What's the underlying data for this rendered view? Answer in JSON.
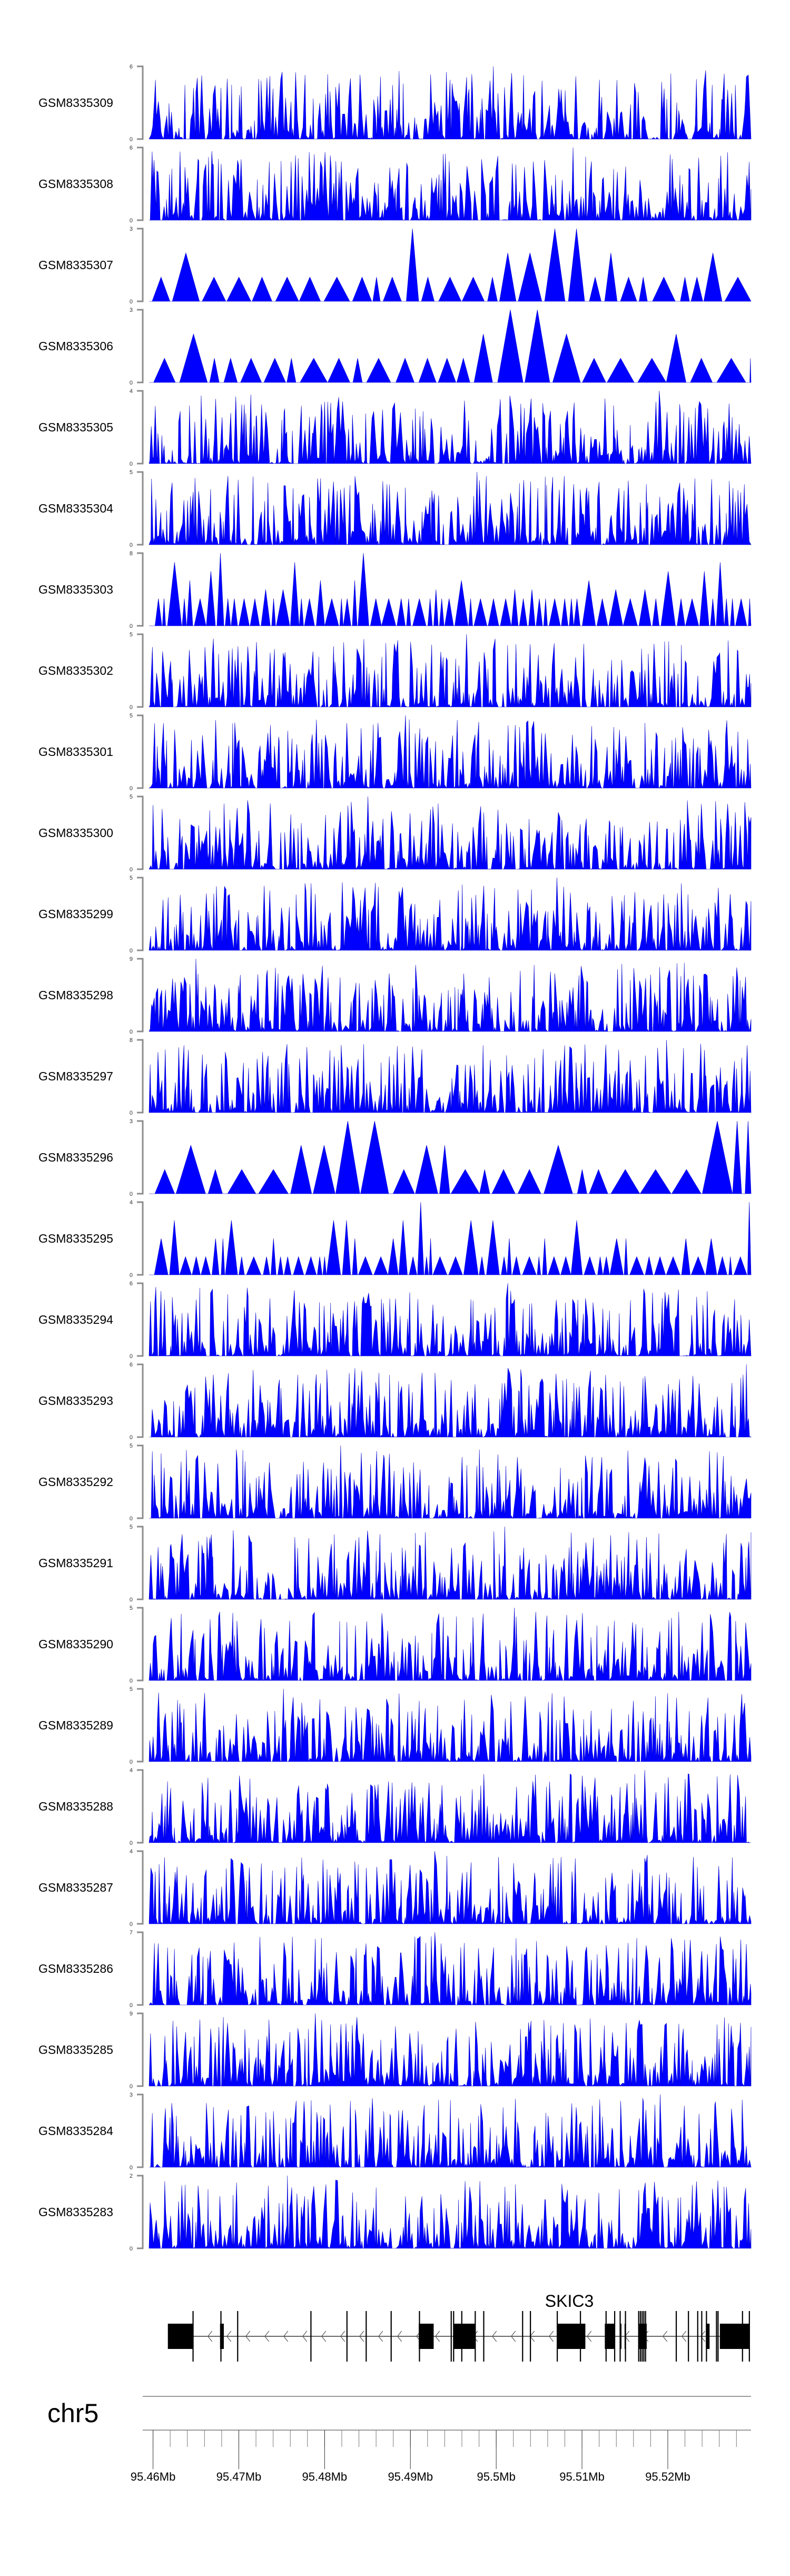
{
  "chart_data": {
    "type": "area",
    "title": "",
    "chromosome": "chr5",
    "xlim_mb": [
      95.4588,
      95.5297
    ],
    "x_ticks": [
      "95.46Mb",
      "95.47Mb",
      "95.48Mb",
      "95.49Mb",
      "95.5Mb",
      "95.51Mb",
      "95.52Mb"
    ],
    "x_tick_values_mb": [
      95.46,
      95.47,
      95.48,
      95.49,
      95.5,
      95.51,
      95.52
    ],
    "minor_tick_step_mb": 0.002,
    "fill_color": "#0000ff",
    "tracks": [
      {
        "name": "GSM8335309",
        "ymax": 6,
        "seed": 309,
        "density": "dense"
      },
      {
        "name": "GSM8335308",
        "ymax": 6,
        "seed": 308,
        "density": "dense"
      },
      {
        "name": "GSM8335307",
        "ymax": 3,
        "seed": 307,
        "density": "sparse"
      },
      {
        "name": "GSM8335306",
        "ymax": 3,
        "seed": 306,
        "density": "sparse"
      },
      {
        "name": "GSM8335305",
        "ymax": 4,
        "seed": 305,
        "density": "dense"
      },
      {
        "name": "GSM8335304",
        "ymax": 5,
        "seed": 304,
        "density": "dense"
      },
      {
        "name": "GSM8335303",
        "ymax": 8,
        "seed": 303,
        "density": "medium"
      },
      {
        "name": "GSM8335302",
        "ymax": 5,
        "seed": 302,
        "density": "dense"
      },
      {
        "name": "GSM8335301",
        "ymax": 5,
        "seed": 301,
        "density": "dense"
      },
      {
        "name": "GSM8335300",
        "ymax": 5,
        "seed": 300,
        "density": "dense"
      },
      {
        "name": "GSM8335299",
        "ymax": 5,
        "seed": 299,
        "density": "dense"
      },
      {
        "name": "GSM8335298",
        "ymax": 9,
        "seed": 298,
        "density": "dense"
      },
      {
        "name": "GSM8335297",
        "ymax": 8,
        "seed": 297,
        "density": "dense"
      },
      {
        "name": "GSM8335296",
        "ymax": 3,
        "seed": 296,
        "density": "sparse"
      },
      {
        "name": "GSM8335295",
        "ymax": 4,
        "seed": 295,
        "density": "medium"
      },
      {
        "name": "GSM8335294",
        "ymax": 6,
        "seed": 294,
        "density": "dense"
      },
      {
        "name": "GSM8335293",
        "ymax": 6,
        "seed": 293,
        "density": "dense"
      },
      {
        "name": "GSM8335292",
        "ymax": 5,
        "seed": 292,
        "density": "dense"
      },
      {
        "name": "GSM8335291",
        "ymax": 5,
        "seed": 291,
        "density": "dense"
      },
      {
        "name": "GSM8335290",
        "ymax": 5,
        "seed": 290,
        "density": "dense"
      },
      {
        "name": "GSM8335289",
        "ymax": 5,
        "seed": 289,
        "density": "dense"
      },
      {
        "name": "GSM8335288",
        "ymax": 4,
        "seed": 288,
        "density": "dense"
      },
      {
        "name": "GSM8335287",
        "ymax": 4,
        "seed": 287,
        "density": "dense"
      },
      {
        "name": "GSM8335286",
        "ymax": 7,
        "seed": 286,
        "density": "dense"
      },
      {
        "name": "GSM8335285",
        "ymax": 9,
        "seed": 285,
        "density": "dense"
      },
      {
        "name": "GSM8335284",
        "ymax": 3,
        "seed": 284,
        "density": "dense"
      },
      {
        "name": "GSM8335283",
        "ymax": 2,
        "seed": 283,
        "density": "dense"
      }
    ],
    "ymin": 0,
    "gene": {
      "name": "SKIC3",
      "strand": "-",
      "exon_blocks_mb": [
        [
          95.46173,
          95.46466
        ],
        [
          95.46781,
          95.46825
        ],
        [
          95.49097,
          95.49271
        ],
        [
          95.49503,
          95.49755
        ],
        [
          95.50711,
          95.51039
        ],
        [
          95.51266,
          95.5138
        ],
        [
          95.51444,
          95.5146
        ],
        [
          95.51496,
          95.51506
        ],
        [
          95.51657,
          95.51754
        ],
        [
          95.52444,
          95.52487
        ],
        [
          95.52607,
          95.52957
        ]
      ],
      "exon_marks_mb": [
        95.46466,
        95.46791,
        95.46986,
        95.4784,
        95.4826,
        95.48484,
        95.48775,
        95.49105,
        95.49475,
        95.49503,
        95.49598,
        95.49755,
        95.49854,
        95.50307,
        95.50398,
        95.50711,
        95.50981,
        95.5128,
        95.5138,
        95.51444,
        95.51506,
        95.5166,
        95.5168,
        95.517,
        95.5172,
        95.5174,
        95.52098,
        95.5224,
        95.52348,
        95.52395,
        95.5245,
        95.52567,
        95.52585,
        95.5287,
        95.5295
      ]
    }
  }
}
